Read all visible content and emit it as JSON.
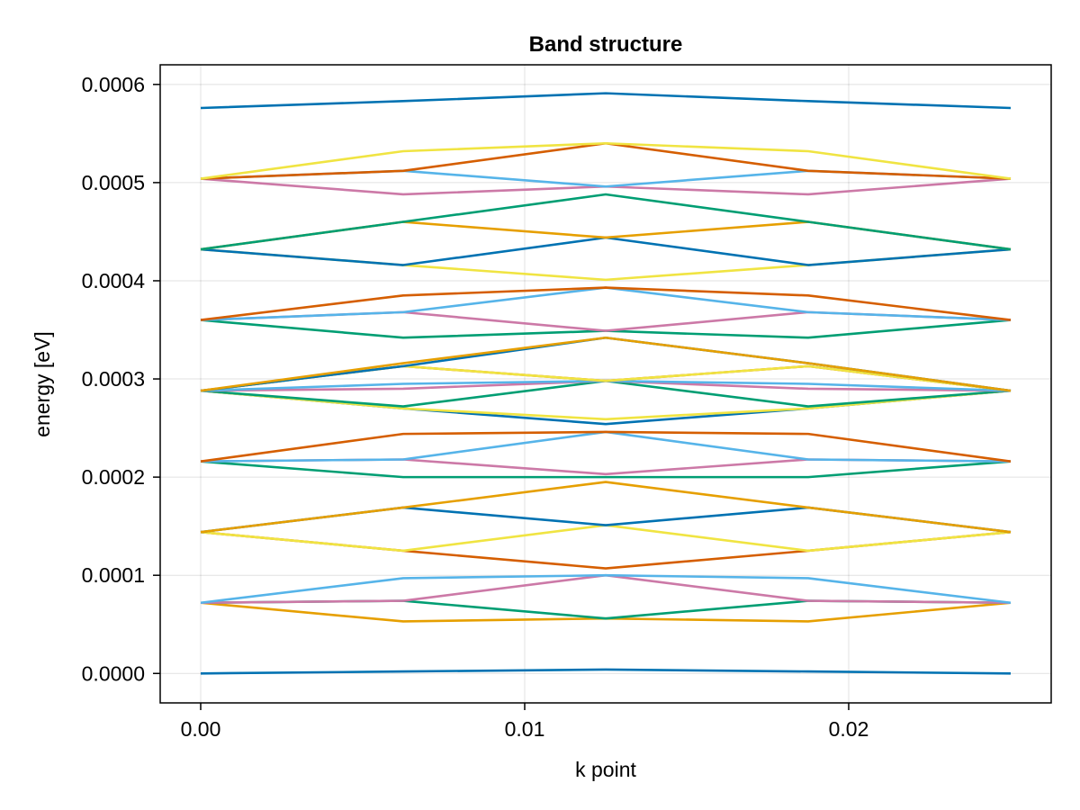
{
  "chart_data": {
    "type": "line",
    "title": "Band structure",
    "xlabel": "k point",
    "ylabel": "energy [eV]",
    "xlim": [
      -0.00125,
      0.02625
    ],
    "ylim": [
      -3e-05,
      0.00062
    ],
    "x": [
      0.0,
      0.00625,
      0.0125,
      0.01875,
      0.025
    ],
    "xticks": [
      0.0,
      0.01,
      0.02
    ],
    "xtick_labels": [
      "0.00",
      "0.01",
      "0.02"
    ],
    "yticks": [
      0.0,
      0.0001,
      0.0002,
      0.0003,
      0.0004,
      0.0005,
      0.0006
    ],
    "ytick_labels": [
      "0.0000",
      "0.0001",
      "0.0002",
      "0.0003",
      "0.0004",
      "0.0005",
      "0.0006"
    ],
    "grid": true,
    "legend": "none",
    "colors": {
      "blue": "#0072b2",
      "orange": "#e69f00",
      "green": "#009e73",
      "purple": "#cc79a7",
      "skyblue": "#56b4e9",
      "vermillion": "#d55e00",
      "yellow": "#f0e442"
    },
    "series": [
      {
        "color": "blue",
        "values": [
          0.0,
          2e-06,
          4e-06,
          2e-06,
          0.0
        ]
      },
      {
        "color": "orange",
        "values": [
          7.2e-05,
          5.3e-05,
          5.6e-05,
          5.3e-05,
          7.2e-05
        ]
      },
      {
        "color": "green",
        "values": [
          7.2e-05,
          7.4e-05,
          5.6e-05,
          7.4e-05,
          7.2e-05
        ]
      },
      {
        "color": "purple",
        "values": [
          7.2e-05,
          7.4e-05,
          0.0001,
          7.4e-05,
          7.2e-05
        ]
      },
      {
        "color": "skyblue",
        "values": [
          7.2e-05,
          9.7e-05,
          0.0001,
          9.7e-05,
          7.2e-05
        ]
      },
      {
        "color": "vermillion",
        "values": [
          0.000144,
          0.000125,
          0.000107,
          0.000125,
          0.000144
        ]
      },
      {
        "color": "yellow",
        "values": [
          0.000144,
          0.000125,
          0.000151,
          0.000125,
          0.000144
        ]
      },
      {
        "color": "blue",
        "values": [
          0.000144,
          0.000169,
          0.000151,
          0.000169,
          0.000144
        ]
      },
      {
        "color": "orange",
        "values": [
          0.000144,
          0.000169,
          0.000195,
          0.000169,
          0.000144
        ]
      },
      {
        "color": "green",
        "values": [
          0.000216,
          0.0002,
          0.0002,
          0.0002,
          0.000216
        ]
      },
      {
        "color": "purple",
        "values": [
          0.000216,
          0.000218,
          0.000203,
          0.000218,
          0.000216
        ]
      },
      {
        "color": "skyblue",
        "values": [
          0.000216,
          0.000218,
          0.000246,
          0.000218,
          0.000216
        ]
      },
      {
        "color": "vermillion",
        "values": [
          0.000216,
          0.000244,
          0.000246,
          0.000244,
          0.000216
        ]
      },
      {
        "color": "blue",
        "values": [
          0.000288,
          0.00027,
          0.000254,
          0.00027,
          0.000288
        ]
      },
      {
        "color": "yellow",
        "values": [
          0.000288,
          0.00027,
          0.000259,
          0.00027,
          0.000288
        ]
      },
      {
        "color": "green",
        "values": [
          0.000288,
          0.000272,
          0.000298,
          0.000272,
          0.000288
        ]
      },
      {
        "color": "purple",
        "values": [
          0.000288,
          0.00029,
          0.000298,
          0.00029,
          0.000288
        ]
      },
      {
        "color": "skyblue",
        "values": [
          0.000288,
          0.000295,
          0.000298,
          0.000295,
          0.000288
        ]
      },
      {
        "color": "vermillion",
        "values": [
          0.000288,
          0.000313,
          0.000298,
          0.000313,
          0.000288
        ]
      },
      {
        "color": "yellow",
        "values": [
          0.000288,
          0.000313,
          0.000298,
          0.000313,
          0.000288
        ]
      },
      {
        "color": "blue",
        "values": [
          0.000288,
          0.000313,
          0.000342,
          0.000316,
          0.000288
        ]
      },
      {
        "color": "orange",
        "values": [
          0.000288,
          0.000316,
          0.000342,
          0.000316,
          0.000288
        ]
      },
      {
        "color": "green",
        "values": [
          0.00036,
          0.000342,
          0.000349,
          0.000342,
          0.00036
        ]
      },
      {
        "color": "purple",
        "values": [
          0.00036,
          0.000368,
          0.000349,
          0.000368,
          0.00036
        ]
      },
      {
        "color": "skyblue",
        "values": [
          0.00036,
          0.000368,
          0.000393,
          0.000368,
          0.00036
        ]
      },
      {
        "color": "vermillion",
        "values": [
          0.00036,
          0.000385,
          0.000393,
          0.000385,
          0.00036
        ]
      },
      {
        "color": "yellow",
        "values": [
          0.000432,
          0.000416,
          0.000401,
          0.000416,
          0.000432
        ]
      },
      {
        "color": "blue",
        "values": [
          0.000432,
          0.000416,
          0.000444,
          0.000416,
          0.000432
        ]
      },
      {
        "color": "orange",
        "values": [
          0.000432,
          0.00046,
          0.000444,
          0.00046,
          0.000432
        ]
      },
      {
        "color": "green",
        "values": [
          0.000432,
          0.00046,
          0.000488,
          0.00046,
          0.000432
        ]
      },
      {
        "color": "purple",
        "values": [
          0.000504,
          0.000488,
          0.000496,
          0.000488,
          0.000504
        ]
      },
      {
        "color": "skyblue",
        "values": [
          0.000504,
          0.000512,
          0.000496,
          0.000512,
          0.000504
        ]
      },
      {
        "color": "vermillion",
        "values": [
          0.000504,
          0.000512,
          0.00054,
          0.000512,
          0.000504
        ]
      },
      {
        "color": "yellow",
        "values": [
          0.000504,
          0.000532,
          0.00054,
          0.000532,
          0.000504
        ]
      },
      {
        "color": "blue",
        "values": [
          0.000576,
          0.000583,
          0.000591,
          0.000583,
          0.000576
        ]
      }
    ]
  }
}
